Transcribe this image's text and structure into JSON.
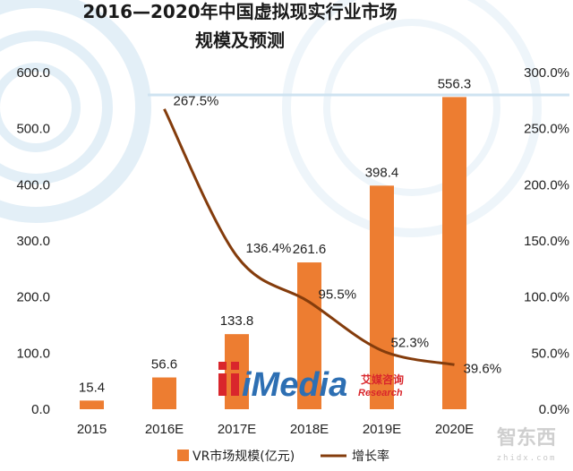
{
  "chart_data": {
    "type": "bar",
    "title_line1": "2016—2020年中国虚拟现实行业市场",
    "title_line2": "规模及预测",
    "categories": [
      "2015",
      "2016E",
      "2017E",
      "2018E",
      "2019E",
      "2020E"
    ],
    "series": [
      {
        "name": "VR市场规模(亿元)",
        "type": "bar",
        "axis": "left",
        "color": "#ED7D31",
        "values": [
          15.4,
          56.6,
          133.8,
          261.6,
          398.4,
          556.3
        ],
        "labels": [
          "15.4",
          "56.6",
          "133.8",
          "261.6",
          "398.4",
          "556.3"
        ]
      },
      {
        "name": "增长率",
        "type": "line",
        "axis": "right",
        "color": "#843C0C",
        "values": [
          null,
          267.5,
          136.4,
          95.5,
          52.3,
          39.6
        ],
        "labels": [
          "",
          "267.5%",
          "136.4%",
          "95.5%",
          "52.3%",
          "39.6%"
        ]
      }
    ],
    "left_axis": {
      "ylim": [
        0,
        600
      ],
      "ticks": [
        "0.0",
        "100.0",
        "200.0",
        "300.0",
        "400.0",
        "500.0",
        "600.0"
      ]
    },
    "right_axis": {
      "ylim": [
        0,
        300
      ],
      "ticks": [
        "0.0%",
        "50.0%",
        "100.0%",
        "150.0%",
        "200.0%",
        "250.0%",
        "300.0%"
      ]
    },
    "legend_position": "bottom"
  },
  "logo": {
    "brand": "iMedia",
    "cn": "艾媒咨询",
    "en": "Research"
  },
  "watermark": {
    "text": "智东西",
    "sub": "zhidx.com"
  },
  "colors": {
    "bar": "#ED7D31",
    "line": "#843C0C",
    "background_decor": "#e6f1f8"
  }
}
